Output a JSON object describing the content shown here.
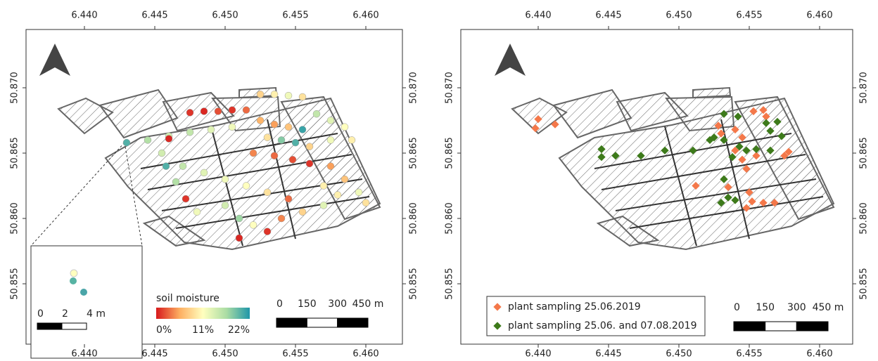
{
  "maps": [
    {
      "xlim": [
        6.43585,
        6.4626
      ],
      "ylim": [
        50.85038,
        50.87446
      ],
      "xticks": [
        {
          "value": 6.44,
          "label": "6.440"
        },
        {
          "value": 6.445,
          "label": "6.445"
        },
        {
          "value": 6.45,
          "label": "6.450"
        },
        {
          "value": 6.455,
          "label": "6.455"
        },
        {
          "value": 6.46,
          "label": "6.460"
        }
      ],
      "yticks": [
        {
          "value": 50.855,
          "label": "50.855"
        },
        {
          "value": 50.86,
          "label": "50.860"
        },
        {
          "value": 50.865,
          "label": "50.865"
        },
        {
          "value": 50.87,
          "label": "50.870"
        }
      ],
      "colorbar": {
        "title": "soil moisture",
        "lim": [
          0,
          22
        ],
        "ticks": [
          {
            "value": 0,
            "label": "0%"
          },
          {
            "value": 11,
            "label": "11%"
          },
          {
            "value": 22,
            "label": "22%"
          }
        ],
        "colors": [
          "#d7191c",
          "#fdae61",
          "#ffffbf",
          "#abdda4",
          "#1f96a8"
        ]
      },
      "scalebar": [
        0,
        150,
        300,
        {
          "value": 450,
          "label": "450 m"
        }
      ],
      "inset_scalebar": [
        0,
        2,
        {
          "value": 4,
          "label": "4 m"
        }
      ],
      "points": [
        [
          6.4475,
          50.8681,
          1
        ],
        [
          6.4485,
          50.8682,
          0.5
        ],
        [
          6.4495,
          50.8682,
          2
        ],
        [
          6.4505,
          50.8683,
          1
        ],
        [
          6.4515,
          50.8683,
          3
        ],
        [
          6.4525,
          50.8695,
          8
        ],
        [
          6.4535,
          50.8695,
          10
        ],
        [
          6.4545,
          50.8694,
          12
        ],
        [
          6.4555,
          50.8693,
          9
        ],
        [
          6.443,
          50.8658,
          20
        ],
        [
          6.4445,
          50.866,
          16
        ],
        [
          6.446,
          50.8663,
          14
        ],
        [
          6.4475,
          50.8666,
          15
        ],
        [
          6.449,
          50.8668,
          13
        ],
        [
          6.4505,
          50.867,
          12
        ],
        [
          6.446,
          50.8661,
          0.5
        ],
        [
          6.4525,
          50.8675,
          6
        ],
        [
          6.4535,
          50.8672,
          5
        ],
        [
          6.4545,
          50.867,
          7
        ],
        [
          6.4555,
          50.8668,
          21
        ],
        [
          6.453,
          50.8662,
          9
        ],
        [
          6.454,
          50.866,
          18
        ],
        [
          6.455,
          50.8658,
          20
        ],
        [
          6.456,
          50.8655,
          8
        ],
        [
          6.452,
          50.865,
          4
        ],
        [
          6.4535,
          50.8648,
          3
        ],
        [
          6.4548,
          50.8645,
          2
        ],
        [
          6.456,
          50.8642,
          1
        ],
        [
          6.4575,
          50.864,
          5
        ],
        [
          6.4585,
          50.863,
          7
        ],
        [
          6.457,
          50.8625,
          10
        ],
        [
          6.447,
          50.864,
          15
        ],
        [
          6.4485,
          50.8635,
          13
        ],
        [
          6.45,
          50.863,
          12
        ],
        [
          6.4515,
          50.8625,
          11
        ],
        [
          6.453,
          50.862,
          9
        ],
        [
          6.4545,
          50.8615,
          3
        ],
        [
          6.4455,
          50.865,
          14
        ],
        [
          6.4458,
          50.864,
          20
        ],
        [
          6.4465,
          50.8628,
          16
        ],
        [
          6.4472,
          50.8615,
          1
        ],
        [
          6.448,
          50.8605,
          12
        ],
        [
          6.45,
          50.861,
          14
        ],
        [
          6.451,
          50.86,
          17
        ],
        [
          6.452,
          50.8595,
          11
        ],
        [
          6.453,
          50.859,
          1
        ],
        [
          6.454,
          50.86,
          4
        ],
        [
          6.4555,
          50.8605,
          8
        ],
        [
          6.457,
          50.861,
          13
        ],
        [
          6.458,
          50.8618,
          10
        ],
        [
          6.4595,
          50.862,
          12
        ],
        [
          6.46,
          50.8612,
          9
        ],
        [
          6.451,
          50.8585,
          0.5
        ],
        [
          6.4565,
          50.868,
          15
        ],
        [
          6.4575,
          50.8675,
          13
        ],
        [
          6.4585,
          50.867,
          11
        ],
        [
          6.459,
          50.866,
          10
        ],
        [
          6.4575,
          50.866,
          12
        ]
      ]
    },
    {
      "xlim": [
        6.4345,
        6.46235
      ],
      "ylim": [
        50.85038,
        50.87446
      ],
      "xticks": [
        {
          "value": 6.44,
          "label": "6.440"
        },
        {
          "value": 6.445,
          "label": "6.445"
        },
        {
          "value": 6.45,
          "label": "6.450"
        },
        {
          "value": 6.455,
          "label": "6.455"
        },
        {
          "value": 6.46,
          "label": "6.460"
        }
      ],
      "yticks": [
        {
          "value": 50.855,
          "label": "50.855"
        },
        {
          "value": 50.86,
          "label": "50.860"
        },
        {
          "value": 50.865,
          "label": "50.865"
        },
        {
          "value": 50.87,
          "label": "50.870"
        }
      ],
      "scalebar": [
        0,
        150,
        300,
        {
          "value": 450,
          "label": "450 m"
        }
      ],
      "series": [
        {
          "name": "plant sampling 25.06.2019",
          "color": "#f4784a",
          "points": [
            [
              6.44,
              50.8676
            ],
            [
              6.4398,
              50.8669
            ],
            [
              6.4412,
              50.8672
            ],
            [
              6.4528,
              50.8671
            ],
            [
              6.453,
              50.8665
            ],
            [
              6.454,
              50.8668
            ],
            [
              6.4545,
              50.8662
            ],
            [
              6.4553,
              50.8682
            ],
            [
              6.456,
              50.8683
            ],
            [
              6.4562,
              50.8678
            ],
            [
              6.454,
              50.8652
            ],
            [
              6.4545,
              50.8645
            ],
            [
              6.4548,
              50.8638
            ],
            [
              6.4555,
              50.8648
            ],
            [
              6.4512,
              50.8625
            ],
            [
              6.4535,
              50.8624
            ],
            [
              6.455,
              50.862
            ],
            [
              6.4552,
              50.8613
            ],
            [
              6.4548,
              50.8608
            ],
            [
              6.456,
              50.8612
            ],
            [
              6.4568,
              50.8612
            ],
            [
              6.4575,
              50.8648
            ],
            [
              6.4578,
              50.8651
            ]
          ]
        },
        {
          "name": "plant sampling 25.06. and 07.08.2019",
          "color": "#3d7a1a",
          "points": [
            [
              6.4445,
              50.8653
            ],
            [
              6.4445,
              50.8647
            ],
            [
              6.4455,
              50.8648
            ],
            [
              6.4473,
              50.8648
            ],
            [
              6.449,
              50.8652
            ],
            [
              6.451,
              50.8652
            ],
            [
              6.4522,
              50.866
            ],
            [
              6.4525,
              50.8662
            ],
            [
              6.4532,
              50.868
            ],
            [
              6.4542,
              50.8678
            ],
            [
              6.4532,
              50.866
            ],
            [
              6.4543,
              50.8655
            ],
            [
              6.4548,
              50.8652
            ],
            [
              6.4538,
              50.8647
            ],
            [
              6.4562,
              50.8673
            ],
            [
              6.457,
              50.8674
            ],
            [
              6.4565,
              50.8667
            ],
            [
              6.4573,
              50.8663
            ],
            [
              6.4555,
              50.8653
            ],
            [
              6.4565,
              50.8652
            ],
            [
              6.4532,
              50.863
            ],
            [
              6.4535,
              50.8616
            ],
            [
              6.454,
              50.8614
            ],
            [
              6.453,
              50.8612
            ]
          ]
        }
      ]
    }
  ]
}
